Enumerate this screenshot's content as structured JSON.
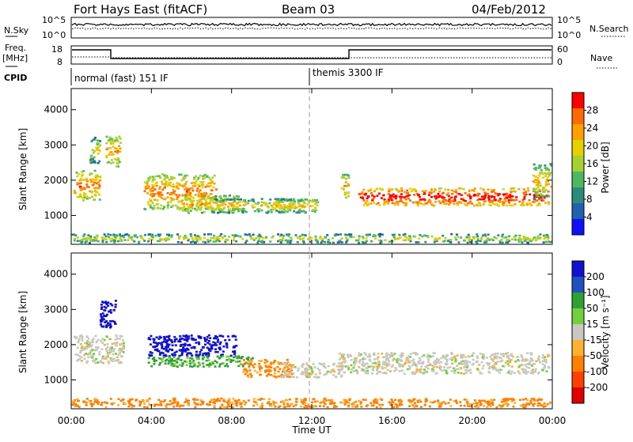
{
  "header": {
    "station": "Fort Hays East (fitACF)",
    "beam": "Beam 03",
    "date": "04/Feb/2012"
  },
  "top_panels": {
    "nsky_label": "N.Sky",
    "nsearch_label": "N.Search",
    "nsky_ticks": [
      "10^5",
      "10^0"
    ],
    "nsearch_ticks": [
      "10^5",
      "10^0"
    ],
    "freq_label_1": "Freq.",
    "freq_label_2": "[MHz]",
    "freq_ticks": [
      "18",
      "8"
    ],
    "nave_label": "Nave",
    "nave_ticks": [
      "60",
      "0"
    ],
    "cpid_label": "CPID",
    "cpid_segments": [
      {
        "label": "normal (fast) 151 IF",
        "start_hour": 0,
        "end_hour": 12
      },
      {
        "label": "themis 3300 IF",
        "start_hour": 12,
        "end_hour": 24
      }
    ]
  },
  "axes": {
    "x_ticks": [
      "00:00",
      "04:00",
      "08:00",
      "12:00",
      "16:00",
      "20:00",
      "00:00"
    ],
    "x_tick_hours": [
      0,
      4,
      8,
      12,
      16,
      20,
      24
    ],
    "xlabel": "Time UT",
    "ylabel": "Slant Range [km]",
    "y_ticks": [
      "1000",
      "2000",
      "3000",
      "4000"
    ],
    "y_tick_values": [
      1000,
      2000,
      3000,
      4000
    ]
  },
  "power_colorbar": {
    "label": "Power [dB]",
    "ticks": [
      "28",
      "24",
      "20",
      "16",
      "12",
      "8",
      "4"
    ],
    "colors": [
      "#ff0000",
      "#ff6a00",
      "#ffa000",
      "#e6d000",
      "#a8d030",
      "#4cb860",
      "#2e8a7a",
      "#2060b0",
      "#1010ff"
    ]
  },
  "velocity_colorbar": {
    "label": "Velocity [m s⁻¹]",
    "ticks": [
      "200",
      "100",
      "50",
      "15",
      "-15",
      "-50",
      "-100",
      "-200"
    ],
    "colors": [
      "#1010d0",
      "#2050c0",
      "#30a030",
      "#70d040",
      "#c8c8c0",
      "#ffb030",
      "#ff8000",
      "#ff4000",
      "#e00000"
    ]
  },
  "chart_data": {
    "type": "heatmap",
    "xlabel": "Time UT",
    "ylabel": "Slant Range [km]",
    "xlim": [
      0,
      24
    ],
    "ylim": [
      180,
      4600
    ],
    "power_echoes": [
      {
        "t0": 0.1,
        "t1": 1.4,
        "r0": 1450,
        "r1": 2300,
        "power_db": 18
      },
      {
        "t0": 0.9,
        "t1": 1.4,
        "r0": 2500,
        "r1": 3300,
        "power_db": 10
      },
      {
        "t0": 1.7,
        "t1": 2.4,
        "r0": 2400,
        "r1": 3300,
        "power_db": 16
      },
      {
        "t0": 3.6,
        "t1": 7.2,
        "r0": 1200,
        "r1": 2200,
        "power_db": 18
      },
      {
        "t0": 5.5,
        "t1": 8.4,
        "r0": 1100,
        "r1": 1600,
        "power_db": 16
      },
      {
        "t0": 7.0,
        "t1": 11.5,
        "r0": 1100,
        "r1": 1500,
        "power_db": 12
      },
      {
        "t0": 10.0,
        "t1": 12.3,
        "r0": 1100,
        "r1": 1500,
        "power_db": 14
      },
      {
        "t0": 13.4,
        "t1": 13.8,
        "r0": 1500,
        "r1": 2200,
        "power_db": 16
      },
      {
        "t0": 14.3,
        "t1": 23.8,
        "r0": 1300,
        "r1": 1800,
        "power_db": 24
      },
      {
        "t0": 23.0,
        "t1": 23.9,
        "r0": 1500,
        "r1": 2500,
        "power_db": 14
      },
      {
        "t0": 0.0,
        "t1": 24.0,
        "r0": 250,
        "r1": 500,
        "power_db": 10
      }
    ],
    "velocity_echoes": [
      {
        "t0": 0.1,
        "t1": 2.6,
        "r0": 1500,
        "r1": 2300,
        "velocity": 0
      },
      {
        "t0": 1.4,
        "t1": 2.2,
        "r0": 2500,
        "r1": 3300,
        "velocity": 200
      },
      {
        "t0": 3.8,
        "t1": 8.2,
        "r0": 1700,
        "r1": 2300,
        "velocity": 150
      },
      {
        "t0": 3.8,
        "t1": 9.0,
        "r0": 1400,
        "r1": 1700,
        "velocity": 40
      },
      {
        "t0": 8.5,
        "t1": 11.0,
        "r0": 1100,
        "r1": 1600,
        "velocity": -60
      },
      {
        "t0": 10.5,
        "t1": 13.5,
        "r0": 1100,
        "r1": 1500,
        "velocity": 0
      },
      {
        "t0": 13.3,
        "t1": 23.8,
        "r0": 1200,
        "r1": 1800,
        "velocity": 0
      },
      {
        "t0": 0.0,
        "t1": 24.0,
        "r0": 250,
        "r1": 500,
        "velocity": -60
      }
    ]
  }
}
